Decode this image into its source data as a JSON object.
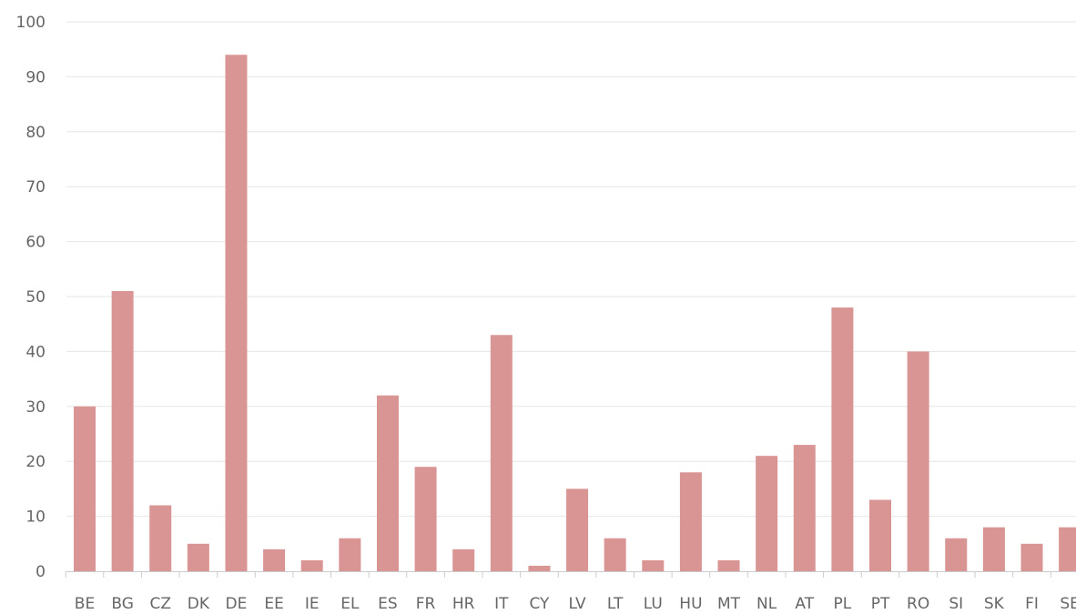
{
  "chart_data": {
    "type": "bar",
    "title": "",
    "xlabel": "",
    "ylabel": "",
    "ylim": [
      0,
      100
    ],
    "y_ticks": [
      0,
      10,
      20,
      30,
      40,
      50,
      60,
      70,
      80,
      90,
      100
    ],
    "grid": true,
    "bar_color": "#d99594",
    "categories": [
      "BE",
      "BG",
      "CZ",
      "DK",
      "DE",
      "EE",
      "IE",
      "EL",
      "ES",
      "FR",
      "HR",
      "IT",
      "CY",
      "LV",
      "LT",
      "LU",
      "HU",
      "MT",
      "NL",
      "AT",
      "PL",
      "PT",
      "RO",
      "SI",
      "SK",
      "FI",
      "SE"
    ],
    "values": [
      30,
      51,
      12,
      5,
      94,
      4,
      2,
      6,
      32,
      19,
      4,
      43,
      1,
      15,
      6,
      2,
      18,
      2,
      21,
      23,
      48,
      13,
      40,
      6,
      8,
      5,
      8
    ]
  }
}
